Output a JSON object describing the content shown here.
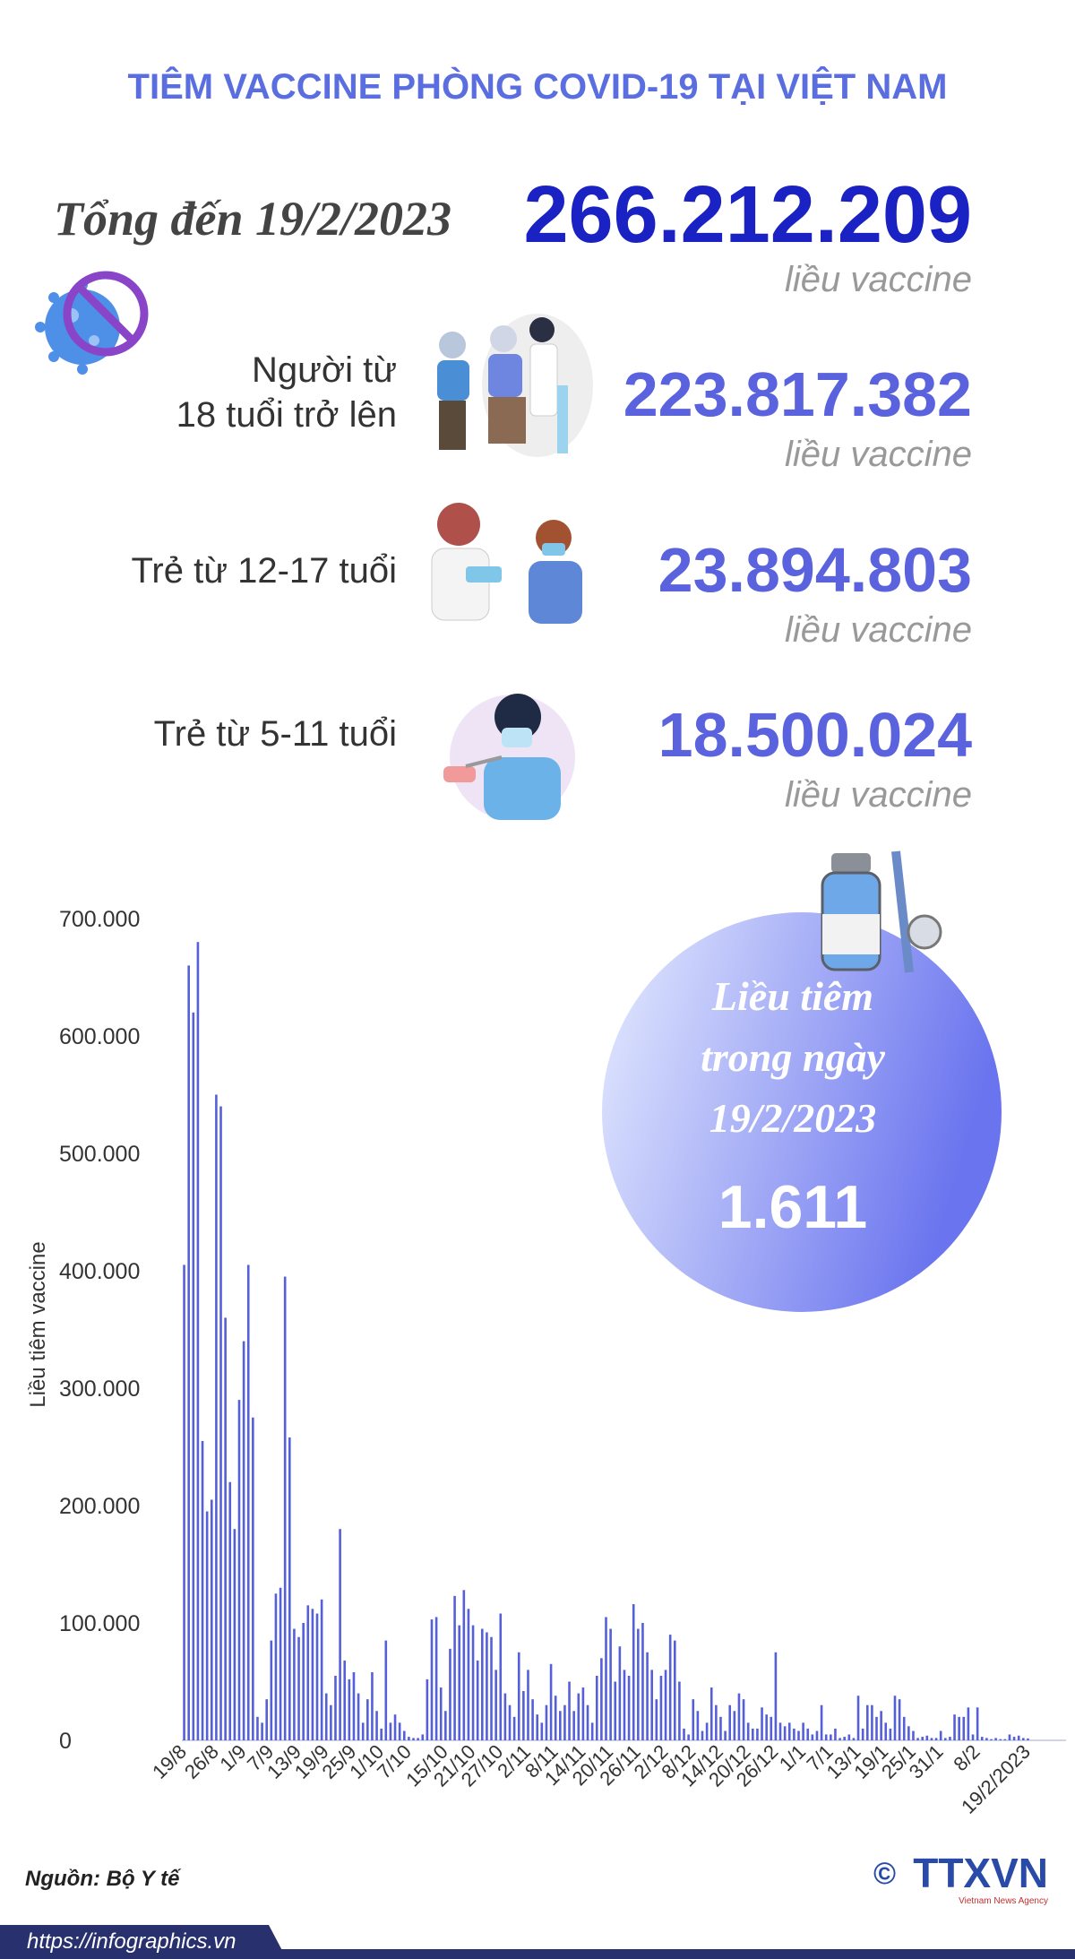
{
  "title": "TIÊM VACCINE PHÒNG COVID-19 TẠI VIỆT NAM",
  "total": {
    "label": "Tổng đến 19/2/2023",
    "value": "266.212.209",
    "unit": "liều vaccine"
  },
  "groups": [
    {
      "label_lines": [
        "Người từ",
        "18 tuổi trở lên"
      ],
      "value": "223.817.382",
      "unit": "liều vaccine"
    },
    {
      "label_lines": [
        "Trẻ từ 12-17 tuổi"
      ],
      "value": "23.894.803",
      "unit": "liều vaccine"
    },
    {
      "label_lines": [
        "Trẻ từ 5-11 tuổi"
      ],
      "value": "18.500.024",
      "unit": "liều vaccine"
    }
  ],
  "callout": {
    "lines": [
      "Liều tiêm",
      "trong ngày",
      "19/2/2023"
    ],
    "value": "1.611"
  },
  "chart_data": {
    "type": "bar",
    "y_label": "Liều tiêm vaccine",
    "color": "#5560d8",
    "grid": false,
    "ylim": [
      0,
      700000
    ],
    "yticks": [
      0,
      {
        "value": 100000,
        "label": "100.000"
      },
      {
        "value": 200000,
        "label": "200.000"
      },
      {
        "value": 300000,
        "label": "300.000"
      },
      {
        "value": 400000,
        "label": "400.000"
      },
      {
        "value": 500000,
        "label": "500.000"
      },
      {
        "value": 600000,
        "label": "600.000"
      },
      {
        "value": 700000,
        "label": "700.000"
      }
    ],
    "categories": [
      "19/8",
      null,
      null,
      null,
      null,
      null,
      null,
      "26/8",
      null,
      null,
      null,
      null,
      null,
      "1/9",
      null,
      null,
      null,
      null,
      null,
      "7/9",
      null,
      null,
      null,
      null,
      null,
      "13/9",
      null,
      null,
      null,
      null,
      null,
      "19/9",
      null,
      null,
      null,
      null,
      null,
      "25/9",
      null,
      null,
      null,
      null,
      null,
      "1/10",
      null,
      null,
      null,
      null,
      null,
      "7/10",
      null,
      null,
      null,
      null,
      null,
      null,
      null,
      "15/10",
      null,
      null,
      null,
      null,
      null,
      "21/10",
      null,
      null,
      null,
      null,
      null,
      "27/10",
      null,
      null,
      null,
      null,
      null,
      "2/11",
      null,
      null,
      null,
      null,
      null,
      "8/11",
      null,
      null,
      null,
      null,
      null,
      "14/11",
      null,
      null,
      null,
      null,
      null,
      "20/11",
      null,
      null,
      null,
      null,
      null,
      "26/11",
      null,
      null,
      null,
      null,
      null,
      "2/12",
      null,
      null,
      null,
      null,
      null,
      "8/12",
      null,
      null,
      null,
      null,
      null,
      "14/12",
      null,
      null,
      null,
      null,
      null,
      "20/12",
      null,
      null,
      null,
      null,
      null,
      "26/12",
      null,
      null,
      null,
      null,
      null,
      "1/1",
      null,
      null,
      null,
      null,
      null,
      "7/1",
      null,
      null,
      null,
      null,
      null,
      "13/1",
      null,
      null,
      null,
      null,
      null,
      "19/1",
      null,
      null,
      null,
      null,
      null,
      "25/1",
      null,
      null,
      null,
      null,
      null,
      "31/1",
      null,
      null,
      null,
      null,
      null,
      null,
      null,
      "8/2",
      null,
      null,
      null,
      null,
      null,
      null,
      null,
      null,
      null,
      null,
      "19/2/2023"
    ],
    "values": [
      405000,
      660000,
      620000,
      680000,
      255000,
      195000,
      205000,
      550000,
      540000,
      360000,
      220000,
      180000,
      290000,
      340000,
      405000,
      275000,
      20000,
      15000,
      35000,
      85000,
      125000,
      130000,
      395000,
      258000,
      95000,
      88000,
      100000,
      115000,
      112000,
      108000,
      120000,
      40000,
      30000,
      55000,
      180000,
      68000,
      52000,
      58000,
      40000,
      15000,
      35000,
      58000,
      25000,
      10000,
      85000,
      15000,
      22000,
      15000,
      8000,
      3000,
      2000,
      2000,
      5000,
      52000,
      103000,
      105000,
      45000,
      25000,
      78000,
      123000,
      98000,
      128000,
      112000,
      98000,
      68000,
      95000,
      92000,
      88000,
      60000,
      108000,
      40000,
      30000,
      20000,
      75000,
      42000,
      60000,
      35000,
      22000,
      15000,
      30000,
      65000,
      38000,
      25000,
      30000,
      50000,
      25000,
      40000,
      45000,
      30000,
      15000,
      55000,
      70000,
      105000,
      95000,
      50000,
      80000,
      60000,
      55000,
      116000,
      95000,
      100000,
      75000,
      60000,
      35000,
      55000,
      60000,
      90000,
      85000,
      50000,
      10000,
      5000,
      35000,
      25000,
      8000,
      15000,
      45000,
      30000,
      20000,
      8000,
      30000,
      25000,
      40000,
      35000,
      15000,
      10000,
      10000,
      28000,
      22000,
      20000,
      75000,
      15000,
      12000,
      15000,
      10000,
      8000,
      15000,
      10000,
      5000,
      8000,
      30000,
      5000,
      5000,
      10000,
      2000,
      3000,
      5000,
      2000,
      38000,
      10000,
      30000,
      30000,
      20000,
      25000,
      15000,
      10000,
      38000,
      35000,
      20000,
      12000,
      8000,
      2000,
      3000,
      4000,
      2000,
      2000,
      8000,
      2000,
      3000,
      22000,
      20000,
      20000,
      28000,
      5000,
      28000,
      3000,
      2000,
      1000,
      2000,
      1000,
      1000,
      5000,
      3000,
      4000,
      2000,
      1611
    ]
  },
  "footer": {
    "source": "Nguồn: Bộ Y tế",
    "url": "https://infographics.vn",
    "logo": "TTXVN",
    "agency": "Vietnam News Agency",
    "copyright": "©"
  }
}
